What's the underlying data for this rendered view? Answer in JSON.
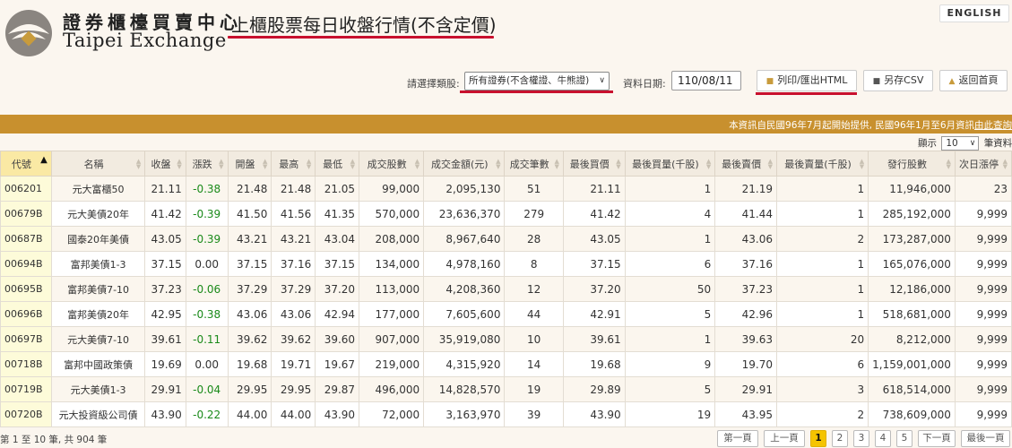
{
  "header": {
    "logo_cn": "證券櫃檯買賣中心",
    "logo_en": "Taipei Exchange",
    "page_title": "上櫃股票每日收盤行情(不含定價)",
    "english_button": "ENGLISH"
  },
  "filters": {
    "category_label": "請選擇類股:",
    "category_value": "所有證券(不含權證、牛熊證)",
    "date_label": "資料日期:",
    "date_value": "110/08/11",
    "print_button": "列印/匯出HTML",
    "csv_button": "另存CSV",
    "home_button": "返回首頁"
  },
  "info_bar": {
    "text": "本資訊自民國96年7月起開始提供, 民國96年1月至6月資訊",
    "link": "由此查詢"
  },
  "page_size": {
    "prefix": "顯示",
    "value": "10",
    "suffix": "筆資料"
  },
  "table": {
    "columns": [
      "代號",
      "名稱",
      "收盤",
      "漲跌",
      "開盤",
      "最高",
      "最低",
      "成交股數",
      "成交金額(元)",
      "成交筆數",
      "最後買價",
      "最後買量(千股)",
      "最後賣價",
      "最後賣量(千股)",
      "發行股數",
      "次日漲停"
    ],
    "rows": [
      [
        "006201",
        "元大富櫃50",
        "21.11",
        "-0.38",
        "21.48",
        "21.48",
        "21.05",
        "99,000",
        "2,095,130",
        "51",
        "21.11",
        "1",
        "21.19",
        "1",
        "11,946,000",
        "23"
      ],
      [
        "00679B",
        "元大美債20年",
        "41.42",
        "-0.39",
        "41.50",
        "41.56",
        "41.35",
        "570,000",
        "23,636,370",
        "279",
        "41.42",
        "4",
        "41.44",
        "1",
        "285,192,000",
        "9,999"
      ],
      [
        "00687B",
        "國泰20年美債",
        "43.05",
        "-0.39",
        "43.21",
        "43.21",
        "43.04",
        "208,000",
        "8,967,640",
        "28",
        "43.05",
        "1",
        "43.06",
        "2",
        "173,287,000",
        "9,999"
      ],
      [
        "00694B",
        "富邦美債1-3",
        "37.15",
        "0.00",
        "37.15",
        "37.16",
        "37.15",
        "134,000",
        "4,978,160",
        "8",
        "37.15",
        "6",
        "37.16",
        "1",
        "165,076,000",
        "9,999"
      ],
      [
        "00695B",
        "富邦美債7-10",
        "37.23",
        "-0.06",
        "37.29",
        "37.29",
        "37.20",
        "113,000",
        "4,208,360",
        "12",
        "37.20",
        "50",
        "37.23",
        "1",
        "12,186,000",
        "9,999"
      ],
      [
        "00696B",
        "富邦美債20年",
        "42.95",
        "-0.38",
        "43.06",
        "43.06",
        "42.94",
        "177,000",
        "7,605,600",
        "44",
        "42.91",
        "5",
        "42.96",
        "1",
        "518,681,000",
        "9,999"
      ],
      [
        "00697B",
        "元大美債7-10",
        "39.61",
        "-0.11",
        "39.62",
        "39.62",
        "39.60",
        "907,000",
        "35,919,080",
        "10",
        "39.61",
        "1",
        "39.63",
        "20",
        "8,212,000",
        "9,999"
      ],
      [
        "00718B",
        "富邦中國政策債",
        "19.69",
        "0.00",
        "19.68",
        "19.71",
        "19.67",
        "219,000",
        "4,315,920",
        "14",
        "19.68",
        "9",
        "19.70",
        "6",
        "1,159,001,000",
        "9,999"
      ],
      [
        "00719B",
        "元大美債1-3",
        "29.91",
        "-0.04",
        "29.95",
        "29.95",
        "29.87",
        "496,000",
        "14,828,570",
        "19",
        "29.89",
        "5",
        "29.91",
        "3",
        "618,514,000",
        "9,999"
      ],
      [
        "00720B",
        "元大投資級公司債",
        "43.90",
        "-0.22",
        "44.00",
        "44.00",
        "43.90",
        "72,000",
        "3,163,970",
        "39",
        "43.90",
        "19",
        "43.95",
        "2",
        "738,609,000",
        "9,999"
      ]
    ]
  },
  "footer": {
    "summary": "第 1 至 10 筆, 共 904 筆",
    "first": "第一頁",
    "prev": "上一頁",
    "pages": [
      "1",
      "2",
      "3",
      "4",
      "5"
    ],
    "next": "下一頁",
    "last": "最後一頁"
  },
  "colors": {
    "accent_bar": "#c8902e",
    "highlight_red": "#c8102e",
    "down": "#1a8a1a",
    "active_page": "#f5c400"
  }
}
